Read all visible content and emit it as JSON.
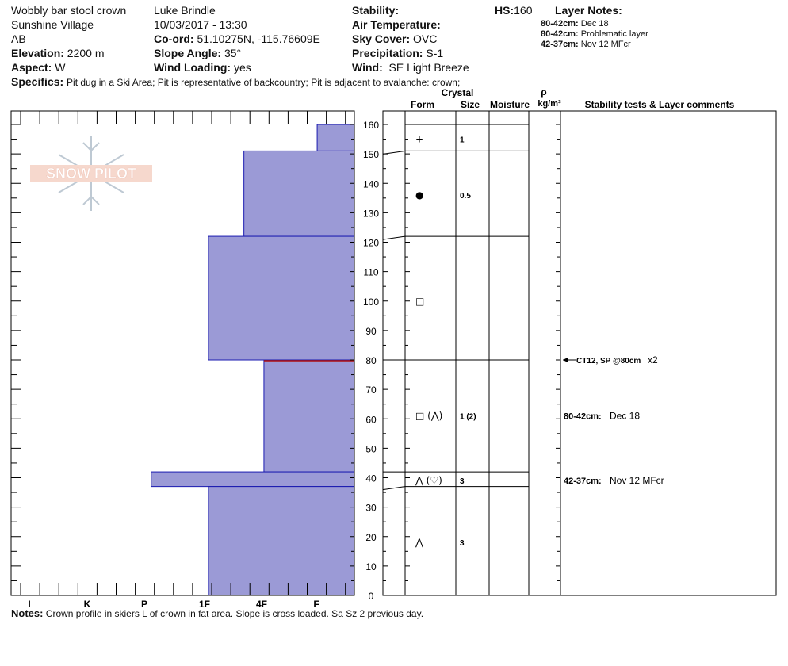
{
  "header": {
    "title": "Wobbly bar stool crown",
    "location": "Sunshine Village",
    "region": "AB",
    "elevation_label": "Elevation:",
    "elevation": "2200 m",
    "aspect_label": "Aspect:",
    "aspect": "W",
    "observer": "Luke Brindle",
    "datetime": "10/03/2017 - 13:30",
    "coord_label": "Co-ord:",
    "coord": "51.10275N, -115.76609E",
    "slope_label": "Slope Angle:",
    "slope": "35°",
    "wind_loading_label": "Wind Loading:",
    "wind_loading": "yes",
    "stability_label": "Stability:",
    "air_temp_label": "Air Temperature:",
    "sky_label": "Sky Cover:",
    "sky": "OVC",
    "precip_label": "Precipitation:",
    "precip": "S-1",
    "wind_label": "Wind:",
    "wind": "SE Light Breeze",
    "hs_label": "HS:",
    "hs": "160",
    "layer_notes_label": "Layer Notes:",
    "layer_notes": [
      {
        "range": "80-42cm:",
        "text": "Dec 18"
      },
      {
        "range": "80-42cm:",
        "text": "Problematic layer"
      },
      {
        "range": "42-37cm:",
        "text": "Nov 12 MFcr"
      }
    ],
    "specifics_label": "Specifics:",
    "specifics": "Pit dug in a Ski Area;  Pit is representative of backcountry;  Pit is adjacent to avalanche: crown;"
  },
  "logo_text": "SNOW PILOT",
  "columns": {
    "crystal": "Crystal",
    "form": "Form",
    "size": "Size",
    "moisture": "Moisture",
    "rho": "ρ",
    "density_unit": "kg/m³",
    "comments": "Stability tests & Layer comments"
  },
  "notes_label": "Notes:",
  "notes": "Crown profile in skiers L of crown in fat area. Slope is cross loaded. Sa Sz 2 previous day.",
  "chart_data": {
    "type": "bar",
    "orientation": "horizontal",
    "y_axis": {
      "label": "",
      "range": [
        0,
        160
      ],
      "ticks": [
        0,
        10,
        20,
        30,
        40,
        50,
        60,
        70,
        80,
        90,
        100,
        110,
        120,
        130,
        140,
        150,
        160
      ]
    },
    "x_axis": {
      "label": "",
      "categories": [
        "I",
        "K",
        "P",
        "1F",
        "4F",
        "F"
      ]
    },
    "hardness_layers": [
      {
        "top": 160,
        "bottom": 151,
        "hardness": "F-",
        "hardness_index": 0.65
      },
      {
        "top": 151,
        "bottom": 122,
        "hardness": "4F-",
        "hardness_index": 1.93
      },
      {
        "top": 122,
        "bottom": 80,
        "hardness": "1F",
        "hardness_index": 2.55
      },
      {
        "top": 80,
        "bottom": 42,
        "hardness": "4F+",
        "hardness_index": 1.58
      },
      {
        "top": 42,
        "bottom": 37,
        "hardness": "P",
        "hardness_index": 3.55
      },
      {
        "top": 37,
        "bottom": 0,
        "hardness": "1F",
        "hardness_index": 2.55
      }
    ],
    "layer_boundaries": [
      160,
      151,
      122,
      80,
      42,
      37,
      0
    ],
    "crystal_rows": [
      {
        "depth": 155,
        "form": "+",
        "size": "1"
      },
      {
        "depth": 136,
        "form": "●",
        "size": "0.5"
      },
      {
        "depth": 100,
        "form": "□",
        "size": ""
      },
      {
        "depth": 61,
        "form": "□ (⋀)",
        "size": "1 (2)"
      },
      {
        "depth": 39,
        "form": "⋀ (♡)",
        "size": "3"
      },
      {
        "depth": 18,
        "form": "⋀",
        "size": "3"
      }
    ],
    "comments": [
      {
        "depth": 80,
        "text": "CT12, SP @80cm",
        "suffix": "x2",
        "arrow": true
      },
      {
        "depth": 61,
        "label": "80-42cm:",
        "text": "Dec 18"
      },
      {
        "depth": 39,
        "label": "42-37cm:",
        "text": "Nov 12 MFcr"
      }
    ],
    "colors": {
      "bar_fill": "#9b9ad6",
      "bar_stroke": "#1a1ab0",
      "failure_line": "#b01010",
      "axis": "#000000"
    }
  }
}
